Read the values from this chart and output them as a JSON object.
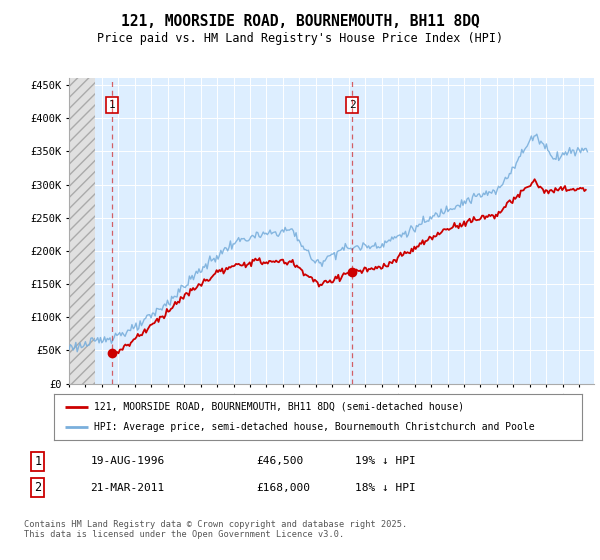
{
  "title_line1": "121, MOORSIDE ROAD, BOURNEMOUTH, BH11 8DQ",
  "title_line2": "Price paid vs. HM Land Registry's House Price Index (HPI)",
  "ylim": [
    0,
    460000
  ],
  "yticks": [
    0,
    50000,
    100000,
    150000,
    200000,
    250000,
    300000,
    350000,
    400000,
    450000
  ],
  "ytick_labels": [
    "£0",
    "£50K",
    "£100K",
    "£150K",
    "£200K",
    "£250K",
    "£300K",
    "£350K",
    "£400K",
    "£450K"
  ],
  "hpi_color": "#7aafdc",
  "price_color": "#cc0000",
  "chart_bg_color": "#ddeeff",
  "hatch_fill_color": "#c8c8c8",
  "purchase1_x": 1996.625,
  "purchase1_y": 46500,
  "purchase1_label": "1",
  "purchase2_x": 2011.208,
  "purchase2_y": 168000,
  "purchase2_label": "2",
  "legend_line1": "121, MOORSIDE ROAD, BOURNEMOUTH, BH11 8DQ (semi-detached house)",
  "legend_line2": "HPI: Average price, semi-detached house, Bournemouth Christchurch and Poole",
  "table_row1": [
    "1",
    "19-AUG-1996",
    "£46,500",
    "19% ↓ HPI"
  ],
  "table_row2": [
    "2",
    "21-MAR-2011",
    "£168,000",
    "18% ↓ HPI"
  ],
  "footnote": "Contains HM Land Registry data © Crown copyright and database right 2025.\nThis data is licensed under the Open Government Licence v3.0.",
  "xmin": 1994,
  "xmax": 2025.9
}
